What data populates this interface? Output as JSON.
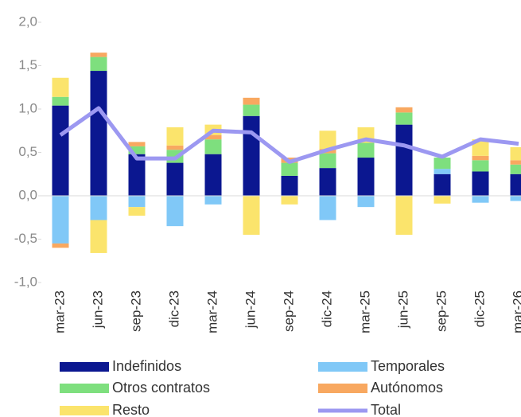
{
  "chart_data": {
    "type": "bar",
    "stacked": true,
    "categories": [
      "mar-23",
      "jun-23",
      "sep-23",
      "dic-23",
      "mar-24",
      "jun-24",
      "sep-24",
      "dic-24",
      "mar-25",
      "jun-25",
      "sep-25",
      "dic-25",
      "mar-26"
    ],
    "series": [
      {
        "name": "Indefinidos",
        "color": "#0b1790",
        "values": [
          1.04,
          1.44,
          0.48,
          0.38,
          0.48,
          0.92,
          0.23,
          0.32,
          0.44,
          0.82,
          0.25,
          0.28,
          0.25
        ]
      },
      {
        "name": "Temporales",
        "color": "#80c8f7",
        "values": [
          -0.55,
          -0.28,
          -0.13,
          -0.35,
          -0.1,
          0,
          0,
          -0.28,
          -0.13,
          0,
          0.06,
          -0.08,
          -0.06
        ]
      },
      {
        "name": "Otros contratos",
        "color": "#7edf7e",
        "values": [
          0.1,
          0.16,
          0.09,
          0.15,
          0.17,
          0.13,
          0.15,
          0.17,
          0.17,
          0.14,
          0.13,
          0.13,
          0.11
        ]
      },
      {
        "name": "Autónomos",
        "color": "#f8a860",
        "values": [
          -0.05,
          0.05,
          0.05,
          0.05,
          0.05,
          0.08,
          0.06,
          0.05,
          0,
          0.06,
          0,
          0.05,
          0.05
        ]
      },
      {
        "name": "Resto",
        "color": "#fbe46c",
        "values": [
          0.22,
          -0.38,
          -0.1,
          0.21,
          0.12,
          -0.45,
          -0.1,
          0.21,
          0.18,
          -0.45,
          -0.09,
          0.19,
          0.15
        ]
      },
      {
        "name": "Total",
        "color": "#9c98f1",
        "type": "line",
        "values": [
          0.7,
          1.01,
          0.43,
          0.43,
          0.75,
          0.73,
          0.39,
          0.53,
          0.65,
          0.58,
          0.45,
          0.65,
          0.6
        ]
      }
    ],
    "ylim": [
      -1.0,
      2.0
    ],
    "yticks": [
      {
        "value": -1.0,
        "label": "-1,0"
      },
      {
        "value": -0.5,
        "label": "-0,5"
      },
      {
        "value": 0,
        "label": "0,0"
      },
      {
        "value": 0.5,
        "label": "0,5"
      },
      {
        "value": 1.0,
        "label": "1,0"
      },
      {
        "value": 1.5,
        "label": "1,5"
      },
      {
        "value": 2.0,
        "label": "2,0"
      }
    ],
    "legend": "bottom"
  }
}
